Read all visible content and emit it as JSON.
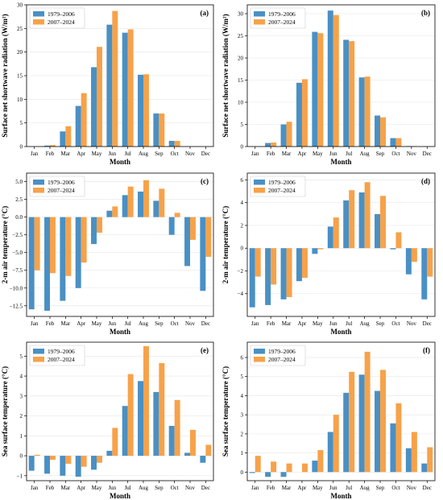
{
  "colors": {
    "series_a": "#4a90c4",
    "series_b": "#f7a24a",
    "grid": "#e6e6e6"
  },
  "chart_data": [
    {
      "panel_label": "(a)",
      "type": "bar",
      "xlabel": "Month",
      "ylabel": "Surface net shortwave radiation (W/m²)",
      "ylim": [
        0,
        30
      ],
      "yticks": [
        0,
        5,
        10,
        15,
        20,
        25,
        30
      ],
      "ytick_labels": [
        "0",
        "5",
        "10",
        "15",
        "20",
        "25",
        "30"
      ],
      "grid": true,
      "legend": "top-left",
      "categories": [
        "Jan",
        "Feb",
        "Mar",
        "Apr",
        "May",
        "Jun",
        "Jul",
        "Aug",
        "Sep",
        "Oct",
        "Nov",
        "Dec"
      ],
      "series": [
        {
          "name": "1979–2006",
          "values": [
            0,
            0.2,
            3.2,
            8.6,
            16.8,
            25.8,
            24.1,
            15.2,
            7.0,
            1.2,
            0,
            0
          ]
        },
        {
          "name": "2007–2024",
          "values": [
            0,
            0.3,
            4.3,
            11.3,
            21.1,
            28.7,
            24.8,
            15.3,
            7.0,
            1.2,
            0,
            0
          ]
        }
      ]
    },
    {
      "panel_label": "(b)",
      "type": "bar",
      "xlabel": "Month",
      "ylabel": "Surface net shortwave radiation (W/m²)",
      "ylim": [
        0,
        32
      ],
      "yticks": [
        0,
        5,
        10,
        15,
        20,
        25,
        30
      ],
      "ytick_labels": [
        "0",
        "5",
        "10",
        "15",
        "20",
        "25",
        "30"
      ],
      "grid": true,
      "legend": "top-left",
      "categories": [
        "Jan",
        "Feb",
        "Mar",
        "Apr",
        "May",
        "Jun",
        "Jul",
        "Aug",
        "Sep",
        "Oct",
        "Nov",
        "Dec"
      ],
      "series": [
        {
          "name": "1979–2006",
          "values": [
            0,
            0.8,
            5.0,
            14.4,
            25.9,
            30.7,
            24.1,
            15.6,
            7.0,
            1.9,
            0.1,
            0
          ]
        },
        {
          "name": "2007–2024",
          "values": [
            0,
            0.9,
            5.6,
            15.2,
            25.6,
            29.7,
            23.8,
            15.8,
            6.6,
            1.9,
            0.1,
            0
          ]
        }
      ]
    },
    {
      "panel_label": "(c)",
      "type": "bar",
      "xlabel": "Month",
      "ylabel": "2-m air temperature (°C)",
      "ylim": [
        -14,
        6.2
      ],
      "yticks": [
        -12.5,
        -10,
        -7.5,
        -5,
        -2.5,
        0,
        2.5,
        5
      ],
      "ytick_labels": [
        "−12.5",
        "−10.0",
        "−7.5",
        "−5.0",
        "−2.5",
        "0.0",
        "2.5",
        "5.0"
      ],
      "grid": true,
      "legend": "top-left",
      "categories": [
        "Jan",
        "Feb",
        "Mar",
        "Apr",
        "May",
        "Jun",
        "Jul",
        "Aug",
        "Sep",
        "Oct",
        "Nov",
        "Dec"
      ],
      "series": [
        {
          "name": "1979–2006",
          "values": [
            -13.0,
            -13.2,
            -11.8,
            -10.0,
            -3.8,
            0.9,
            3.1,
            3.6,
            2.3,
            -2.5,
            -6.9,
            -10.4
          ]
        },
        {
          "name": "2007–2024",
          "values": [
            -7.5,
            -7.9,
            -8.3,
            -6.4,
            -2.2,
            1.5,
            4.3,
            5.2,
            4.0,
            0.6,
            -3.2,
            -5.6
          ]
        }
      ]
    },
    {
      "panel_label": "(d)",
      "type": "bar",
      "xlabel": "Month",
      "ylabel": "2-m air temperature (°C)",
      "ylim": [
        -6,
        6.6
      ],
      "yticks": [
        -4,
        -2,
        0,
        2,
        4,
        6
      ],
      "ytick_labels": [
        "−4",
        "−2",
        "0",
        "2",
        "4",
        "6"
      ],
      "grid": true,
      "legend": "top-left",
      "categories": [
        "Jan",
        "Feb",
        "Mar",
        "Apr",
        "May",
        "Jun",
        "Jul",
        "Aug",
        "Sep",
        "Oct",
        "Nov",
        "Dec"
      ],
      "series": [
        {
          "name": "1979–2006",
          "values": [
            -5.2,
            -5.0,
            -4.5,
            -2.9,
            -0.5,
            1.9,
            4.2,
            4.9,
            3.0,
            -0.1,
            -2.3,
            -4.5
          ]
        },
        {
          "name": "2007–2024",
          "values": [
            -2.5,
            -3.2,
            -4.3,
            -2.6,
            -0.1,
            2.7,
            5.1,
            5.8,
            4.6,
            1.4,
            -1.2,
            -2.5
          ]
        }
      ]
    },
    {
      "panel_label": "(e)",
      "type": "bar",
      "xlabel": "Month",
      "ylabel": "Sea surface temperature (°C)",
      "ylim": [
        -1.25,
        5.7
      ],
      "yticks": [
        -1,
        0,
        1,
        2,
        3,
        4,
        5
      ],
      "ytick_labels": [
        "−1",
        "0",
        "1",
        "2",
        "3",
        "4",
        "5"
      ],
      "grid": true,
      "legend": "top-left",
      "categories": [
        "Jan",
        "Feb",
        "Mar",
        "Apr",
        "May",
        "Jun",
        "Jul",
        "Aug",
        "Sep",
        "Oct",
        "Nov",
        "Dec"
      ],
      "series": [
        {
          "name": "1979–2006",
          "values": [
            -0.75,
            -0.9,
            -1.0,
            -1.05,
            -0.7,
            0.25,
            2.5,
            3.75,
            3.2,
            1.5,
            0.15,
            -0.35
          ]
        },
        {
          "name": "2007–2024",
          "values": [
            0.05,
            -0.2,
            -0.4,
            -0.55,
            -0.35,
            1.4,
            4.1,
            5.5,
            4.65,
            2.8,
            1.3,
            0.55
          ]
        }
      ]
    },
    {
      "panel_label": "(f)",
      "type": "bar",
      "xlabel": "Month",
      "ylabel": "Sea surface temperature (°C)",
      "ylim": [
        -0.45,
        6.8
      ],
      "yticks": [
        0,
        1,
        2,
        3,
        4,
        5,
        6
      ],
      "ytick_labels": [
        "0",
        "1",
        "2",
        "3",
        "4",
        "5",
        "6"
      ],
      "grid": true,
      "legend": "top-left",
      "categories": [
        "Jan",
        "Feb",
        "Mar",
        "Apr",
        "May",
        "Jun",
        "Jul",
        "Aug",
        "Sep",
        "Oct",
        "Nov",
        "Dec"
      ],
      "series": [
        {
          "name": "1979–2006",
          "values": [
            -0.05,
            -0.25,
            -0.25,
            0.0,
            0.6,
            2.1,
            4.15,
            5.1,
            4.25,
            2.55,
            1.25,
            0.45
          ]
        },
        {
          "name": "2007–2024",
          "values": [
            0.85,
            0.55,
            0.45,
            0.45,
            1.15,
            3.0,
            5.25,
            6.3,
            5.35,
            3.6,
            2.1,
            1.3
          ]
        }
      ]
    }
  ]
}
